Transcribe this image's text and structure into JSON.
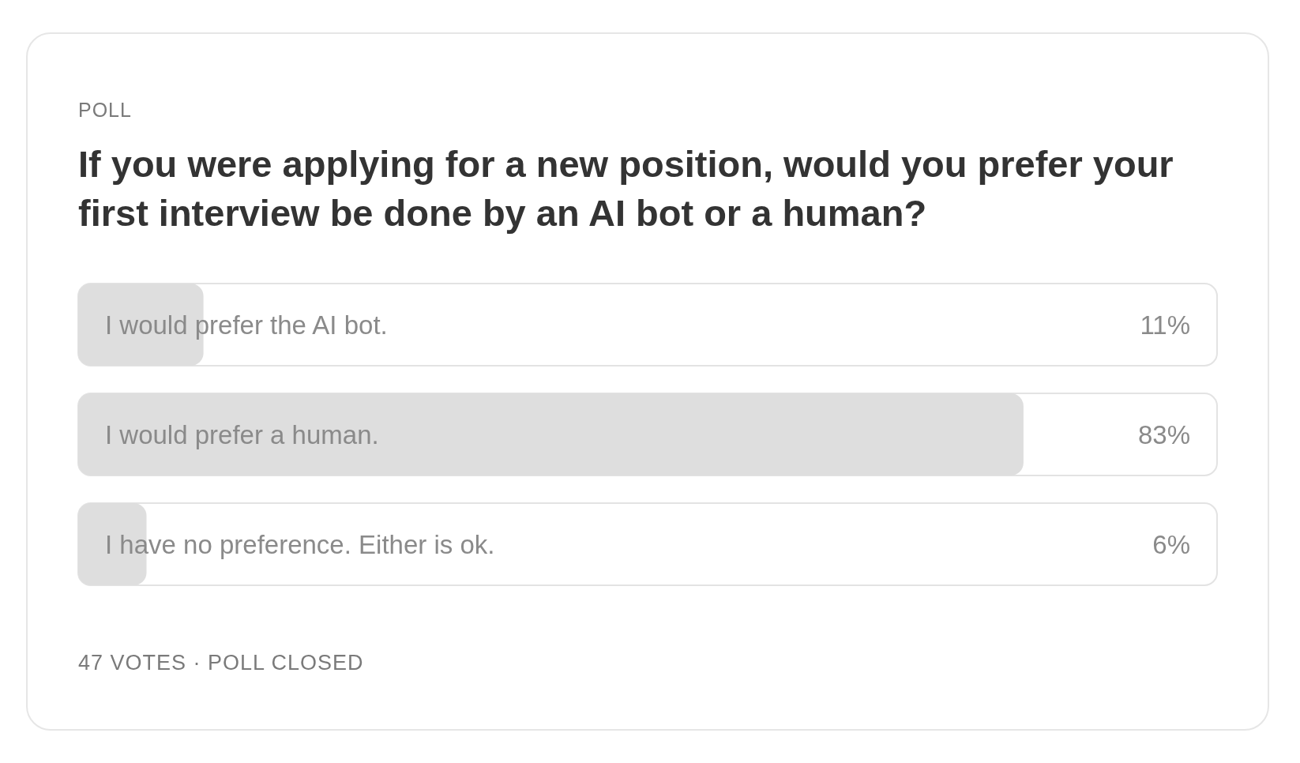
{
  "chart_data": {
    "type": "bar",
    "orientation": "horizontal",
    "title": "If you were applying for a new position, would you prefer your first interview be done by an AI bot or a human?",
    "categories": [
      "I would prefer the AI bot.",
      "I would prefer a human.",
      "I have no preference. Either is ok."
    ],
    "values": [
      11,
      83,
      6
    ],
    "value_labels": [
      "11%",
      "83%",
      "6%"
    ],
    "color": "#dedede",
    "xlim": [
      0,
      100
    ],
    "annotations": [
      "POLL",
      "47 VOTES · POLL CLOSED"
    ]
  }
}
